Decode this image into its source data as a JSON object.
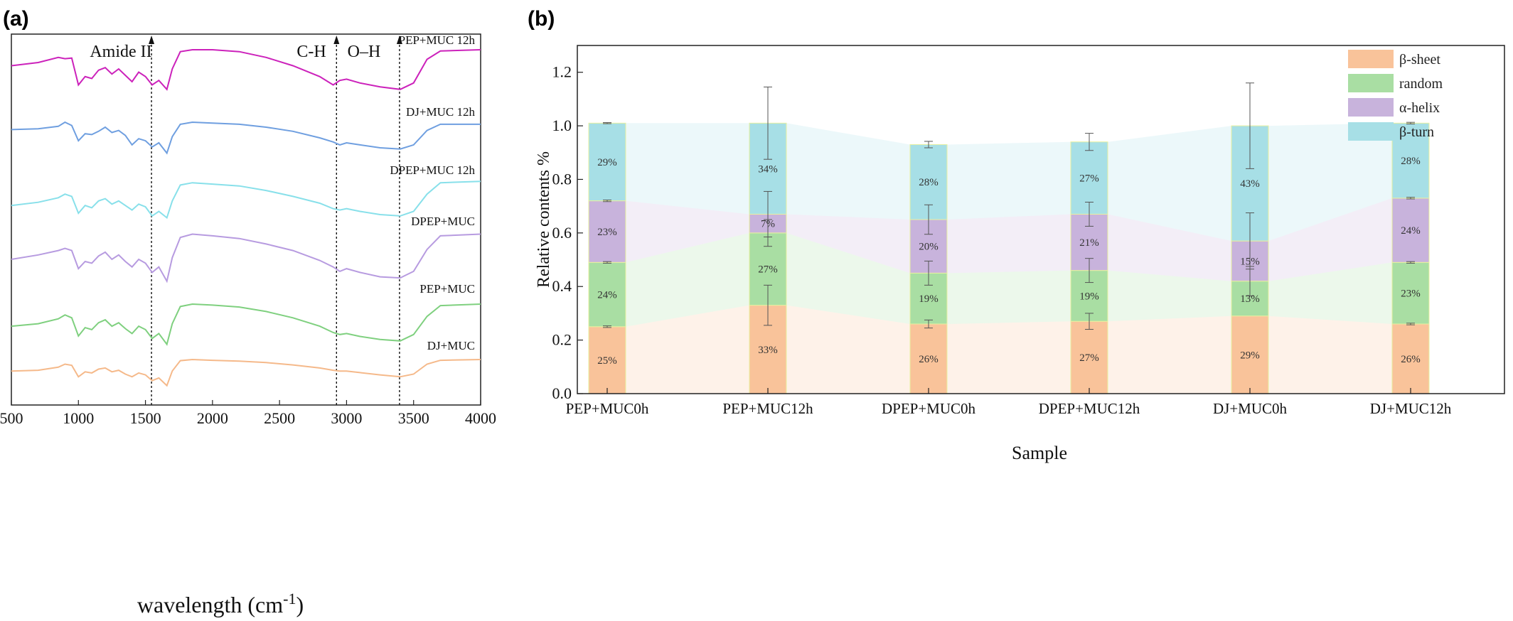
{
  "chart_data": [
    {
      "panel": "(a)",
      "type": "line",
      "xlabel": "wavelength (cm",
      "xlabel_sup": "-1",
      "xlabel_close": ")",
      "xlim": [
        500,
        4000
      ],
      "xticks": [
        500,
        1000,
        1500,
        2000,
        2500,
        3000,
        3500,
        4000
      ],
      "band_markers": [
        {
          "label": "Amide II",
          "x": 1545
        },
        {
          "label": "C-H",
          "x": 2925
        },
        {
          "label": "O–H",
          "x": 3395
        }
      ],
      "series": [
        {
          "name": "PEP+MUC 12h",
          "color": "#cc22bb",
          "offset": 0,
          "points": [
            [
              500,
              0.25
            ],
            [
              700,
              0.2
            ],
            [
              850,
              0.12
            ],
            [
              900,
              0.14
            ],
            [
              950,
              0.13
            ],
            [
              1000,
              0.55
            ],
            [
              1050,
              0.42
            ],
            [
              1100,
              0.45
            ],
            [
              1150,
              0.32
            ],
            [
              1200,
              0.28
            ],
            [
              1250,
              0.38
            ],
            [
              1300,
              0.3
            ],
            [
              1350,
              0.4
            ],
            [
              1400,
              0.5
            ],
            [
              1450,
              0.35
            ],
            [
              1500,
              0.42
            ],
            [
              1550,
              0.55
            ],
            [
              1600,
              0.48
            ],
            [
              1660,
              0.62
            ],
            [
              1700,
              0.3
            ],
            [
              1760,
              0.03
            ],
            [
              1850,
              0.0
            ],
            [
              2000,
              0.0
            ],
            [
              2200,
              0.03
            ],
            [
              2400,
              0.12
            ],
            [
              2600,
              0.25
            ],
            [
              2800,
              0.42
            ],
            [
              2900,
              0.55
            ],
            [
              2950,
              0.48
            ],
            [
              3000,
              0.46
            ],
            [
              3100,
              0.52
            ],
            [
              3250,
              0.58
            ],
            [
              3400,
              0.62
            ],
            [
              3500,
              0.52
            ],
            [
              3600,
              0.15
            ],
            [
              3700,
              0.02
            ],
            [
              4000,
              0.0
            ]
          ]
        },
        {
          "name": "DJ+MUC 12h",
          "color": "#6f9fe0",
          "offset": 1,
          "points": [
            [
              500,
              0.18
            ],
            [
              700,
              0.16
            ],
            [
              850,
              0.1
            ],
            [
              900,
              0.0
            ],
            [
              950,
              0.08
            ],
            [
              1000,
              0.45
            ],
            [
              1050,
              0.28
            ],
            [
              1100,
              0.3
            ],
            [
              1150,
              0.22
            ],
            [
              1200,
              0.12
            ],
            [
              1250,
              0.25
            ],
            [
              1300,
              0.2
            ],
            [
              1350,
              0.32
            ],
            [
              1400,
              0.55
            ],
            [
              1450,
              0.4
            ],
            [
              1500,
              0.45
            ],
            [
              1550,
              0.6
            ],
            [
              1600,
              0.5
            ],
            [
              1660,
              0.75
            ],
            [
              1700,
              0.35
            ],
            [
              1760,
              0.05
            ],
            [
              1850,
              0.0
            ],
            [
              2000,
              0.02
            ],
            [
              2200,
              0.05
            ],
            [
              2400,
              0.12
            ],
            [
              2600,
              0.22
            ],
            [
              2800,
              0.38
            ],
            [
              2900,
              0.48
            ],
            [
              2950,
              0.55
            ],
            [
              3000,
              0.5
            ],
            [
              3100,
              0.55
            ],
            [
              3250,
              0.62
            ],
            [
              3400,
              0.65
            ],
            [
              3500,
              0.55
            ],
            [
              3600,
              0.2
            ],
            [
              3700,
              0.05
            ],
            [
              4000,
              0.05
            ]
          ]
        },
        {
          "name": "DPEP+MUC 12h",
          "color": "#88e0ea",
          "offset": 2,
          "points": [
            [
              500,
              0.55
            ],
            [
              700,
              0.48
            ],
            [
              850,
              0.38
            ],
            [
              900,
              0.3
            ],
            [
              950,
              0.35
            ],
            [
              1000,
              0.72
            ],
            [
              1050,
              0.55
            ],
            [
              1100,
              0.6
            ],
            [
              1150,
              0.45
            ],
            [
              1200,
              0.4
            ],
            [
              1250,
              0.52
            ],
            [
              1300,
              0.45
            ],
            [
              1350,
              0.55
            ],
            [
              1400,
              0.65
            ],
            [
              1450,
              0.52
            ],
            [
              1500,
              0.58
            ],
            [
              1550,
              0.78
            ],
            [
              1600,
              0.68
            ],
            [
              1660,
              0.82
            ],
            [
              1700,
              0.45
            ],
            [
              1760,
              0.1
            ],
            [
              1850,
              0.05
            ],
            [
              2000,
              0.08
            ],
            [
              2200,
              0.12
            ],
            [
              2400,
              0.22
            ],
            [
              2600,
              0.35
            ],
            [
              2800,
              0.5
            ],
            [
              2900,
              0.62
            ],
            [
              2950,
              0.65
            ],
            [
              3000,
              0.62
            ],
            [
              3100,
              0.68
            ],
            [
              3250,
              0.75
            ],
            [
              3400,
              0.78
            ],
            [
              3500,
              0.68
            ],
            [
              3600,
              0.3
            ],
            [
              3700,
              0.05
            ],
            [
              4000,
              0.02
            ]
          ]
        },
        {
          "name": "DPEP+MUC",
          "color": "#b79be0",
          "offset": 3,
          "points": [
            [
              500,
              0.48
            ],
            [
              700,
              0.4
            ],
            [
              850,
              0.32
            ],
            [
              900,
              0.28
            ],
            [
              950,
              0.32
            ],
            [
              1000,
              0.65
            ],
            [
              1050,
              0.52
            ],
            [
              1100,
              0.55
            ],
            [
              1150,
              0.42
            ],
            [
              1200,
              0.35
            ],
            [
              1250,
              0.48
            ],
            [
              1300,
              0.4
            ],
            [
              1350,
              0.52
            ],
            [
              1400,
              0.62
            ],
            [
              1450,
              0.48
            ],
            [
              1500,
              0.55
            ],
            [
              1550,
              0.72
            ],
            [
              1600,
              0.62
            ],
            [
              1660,
              0.88
            ],
            [
              1700,
              0.45
            ],
            [
              1760,
              0.08
            ],
            [
              1850,
              0.02
            ],
            [
              2000,
              0.05
            ],
            [
              2200,
              0.1
            ],
            [
              2400,
              0.2
            ],
            [
              2600,
              0.32
            ],
            [
              2800,
              0.5
            ],
            [
              2900,
              0.62
            ],
            [
              2950,
              0.7
            ],
            [
              3000,
              0.65
            ],
            [
              3100,
              0.72
            ],
            [
              3250,
              0.8
            ],
            [
              3400,
              0.82
            ],
            [
              3500,
              0.7
            ],
            [
              3600,
              0.3
            ],
            [
              3700,
              0.05
            ],
            [
              4000,
              0.02
            ]
          ]
        },
        {
          "name": "PEP+MUC",
          "color": "#7fd07f",
          "offset": 4,
          "points": [
            [
              500,
              0.45
            ],
            [
              700,
              0.4
            ],
            [
              850,
              0.3
            ],
            [
              900,
              0.22
            ],
            [
              950,
              0.28
            ],
            [
              1000,
              0.65
            ],
            [
              1050,
              0.48
            ],
            [
              1100,
              0.52
            ],
            [
              1150,
              0.38
            ],
            [
              1200,
              0.32
            ],
            [
              1250,
              0.45
            ],
            [
              1300,
              0.38
            ],
            [
              1350,
              0.5
            ],
            [
              1400,
              0.6
            ],
            [
              1450,
              0.45
            ],
            [
              1500,
              0.52
            ],
            [
              1550,
              0.7
            ],
            [
              1600,
              0.6
            ],
            [
              1660,
              0.82
            ],
            [
              1700,
              0.4
            ],
            [
              1760,
              0.05
            ],
            [
              1850,
              0.0
            ],
            [
              2000,
              0.02
            ],
            [
              2200,
              0.06
            ],
            [
              2400,
              0.15
            ],
            [
              2600,
              0.28
            ],
            [
              2800,
              0.45
            ],
            [
              2900,
              0.58
            ],
            [
              2950,
              0.62
            ],
            [
              3000,
              0.6
            ],
            [
              3100,
              0.66
            ],
            [
              3250,
              0.72
            ],
            [
              3400,
              0.75
            ],
            [
              3500,
              0.62
            ],
            [
              3600,
              0.25
            ],
            [
              3700,
              0.03
            ],
            [
              4000,
              0.0
            ]
          ]
        },
        {
          "name": "DJ+MUC",
          "color": "#f5b98a",
          "offset": 5,
          "points": [
            [
              500,
              0.3
            ],
            [
              700,
              0.28
            ],
            [
              850,
              0.2
            ],
            [
              900,
              0.12
            ],
            [
              950,
              0.15
            ],
            [
              1000,
              0.45
            ],
            [
              1050,
              0.32
            ],
            [
              1100,
              0.35
            ],
            [
              1150,
              0.25
            ],
            [
              1200,
              0.22
            ],
            [
              1250,
              0.32
            ],
            [
              1300,
              0.28
            ],
            [
              1350,
              0.38
            ],
            [
              1400,
              0.45
            ],
            [
              1450,
              0.35
            ],
            [
              1500,
              0.4
            ],
            [
              1550,
              0.55
            ],
            [
              1600,
              0.48
            ],
            [
              1660,
              0.68
            ],
            [
              1700,
              0.3
            ],
            [
              1760,
              0.03
            ],
            [
              1850,
              0.0
            ],
            [
              2000,
              0.02
            ],
            [
              2200,
              0.04
            ],
            [
              2400,
              0.08
            ],
            [
              2600,
              0.14
            ],
            [
              2800,
              0.22
            ],
            [
              2900,
              0.28
            ],
            [
              2950,
              0.3
            ],
            [
              3000,
              0.3
            ],
            [
              3100,
              0.34
            ],
            [
              3250,
              0.4
            ],
            [
              3400,
              0.45
            ],
            [
              3500,
              0.38
            ],
            [
              3600,
              0.12
            ],
            [
              3700,
              0.02
            ],
            [
              4000,
              0.0
            ]
          ]
        }
      ]
    },
    {
      "panel": "(b)",
      "type": "bar",
      "stacked": true,
      "xlabel": "Sample",
      "ylabel": "Relative contents %",
      "ylim": [
        0,
        1.3
      ],
      "yticks": [
        0.0,
        0.2,
        0.4,
        0.6,
        0.8,
        1.0,
        1.2
      ],
      "categories": [
        "PEP+MUC0h",
        "PEP+MUC12h",
        "DPEP+MUC0h",
        "DPEP+MUC12h",
        "DJ+MUC0h",
        "DJ+MUC12h"
      ],
      "legend_position": "top-right",
      "series": [
        {
          "name": "β-sheet",
          "color": "#f9c39a",
          "values": [
            0.25,
            0.33,
            0.26,
            0.27,
            0.29,
            0.26
          ],
          "labels": [
            "25%",
            "33%",
            "26%",
            "27%",
            "29%",
            "26%"
          ],
          "err": [
            0.003,
            0.075,
            0.015,
            0.03,
            0.0,
            0.003
          ]
        },
        {
          "name": "random",
          "color": "#a9dea3",
          "values": [
            0.24,
            0.27,
            0.19,
            0.19,
            0.13,
            0.23
          ],
          "labels": [
            "24%",
            "27%",
            "19%",
            "19%",
            "13%",
            "23%"
          ],
          "err": [
            0.003,
            0.05,
            0.045,
            0.045,
            0.055,
            0.003
          ]
        },
        {
          "name": "α-helix",
          "color": "#c8b3dc",
          "values": [
            0.23,
            0.07,
            0.2,
            0.21,
            0.15,
            0.24
          ],
          "labels": [
            "23%",
            "7%",
            "20%",
            "21%",
            "15%",
            "24%"
          ],
          "err": [
            0.003,
            0.085,
            0.055,
            0.045,
            0.105,
            0.003
          ]
        },
        {
          "name": "β-turn",
          "color": "#a7dfe6",
          "values": [
            0.29,
            0.34,
            0.28,
            0.27,
            0.43,
            0.28
          ],
          "labels": [
            "29%",
            "34%",
            "28%",
            "27%",
            "43%",
            "28%"
          ],
          "err": [
            0.002,
            0.135,
            0.012,
            0.032,
            0.16,
            0.003
          ]
        }
      ]
    }
  ]
}
